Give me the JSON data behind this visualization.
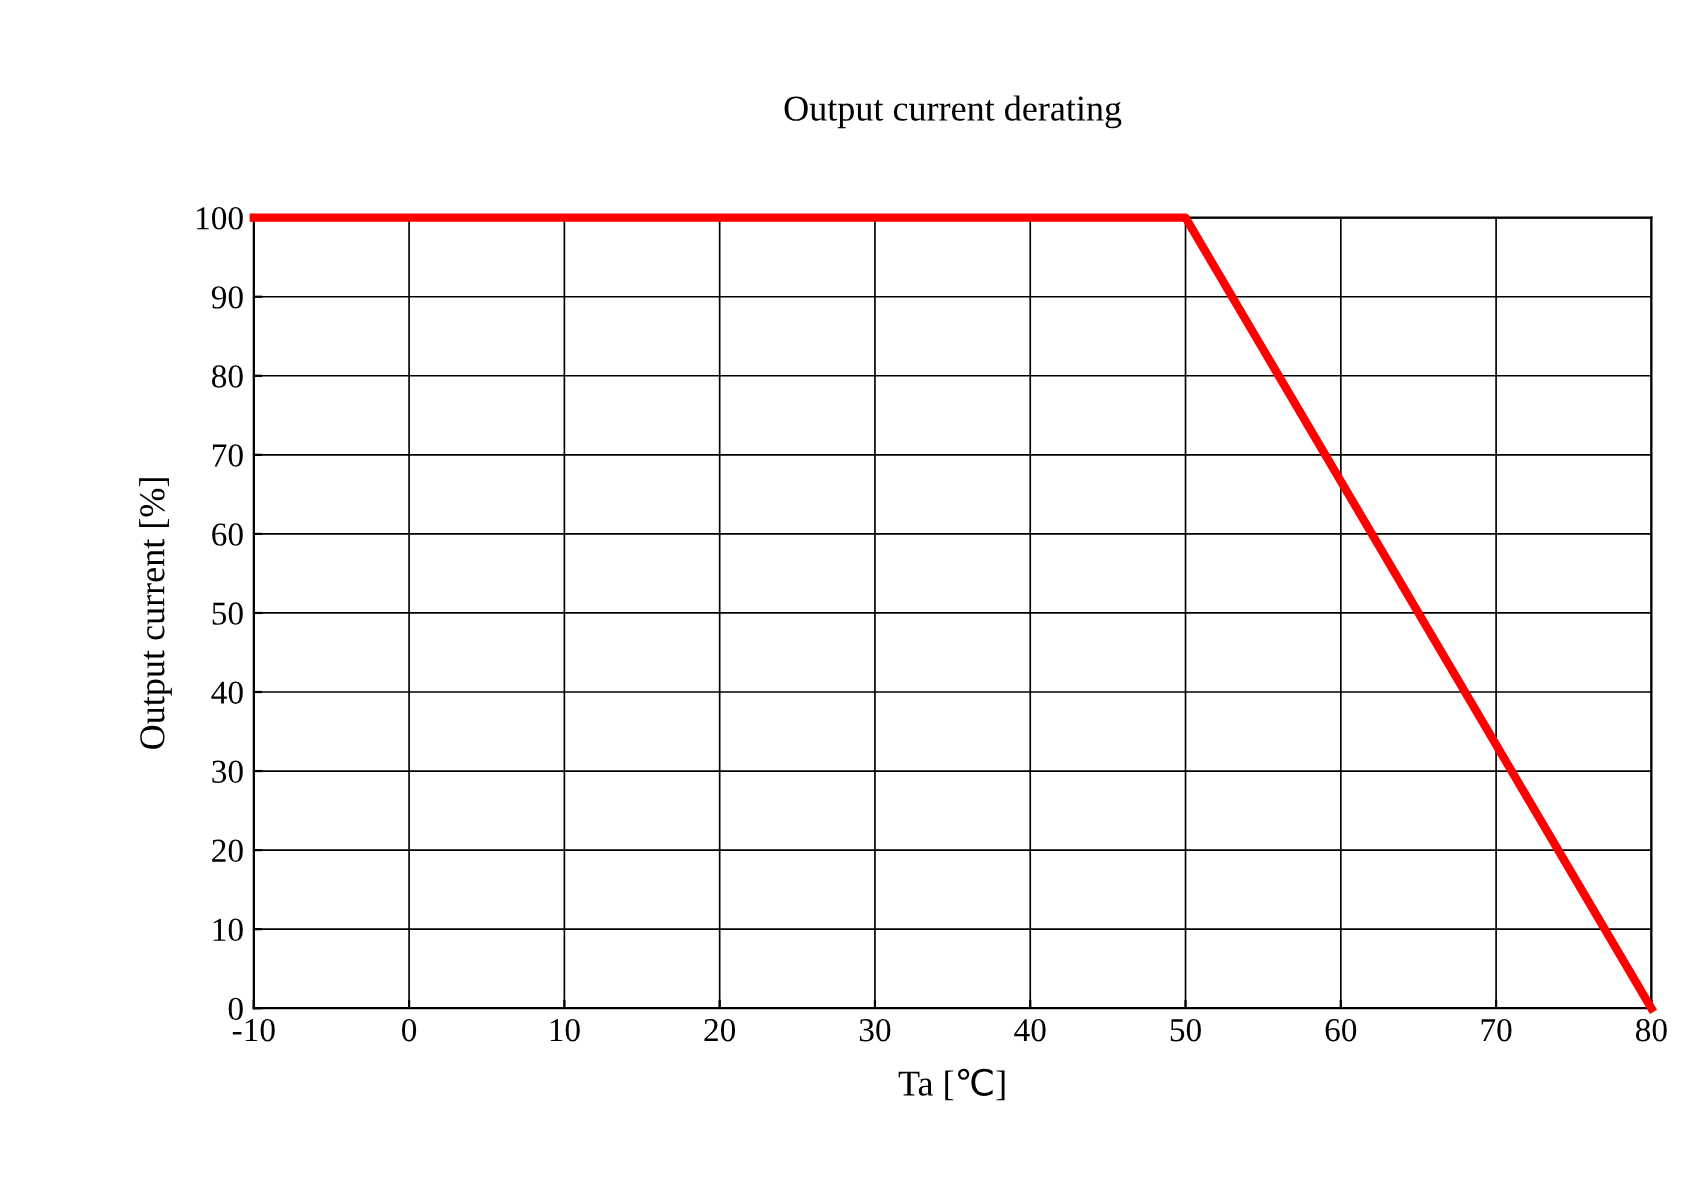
{
  "chart_data": {
    "type": "line",
    "title": "Output current derating",
    "xlabel": "Ta [℃]",
    "ylabel": "Output current [%]",
    "x": [
      -10,
      50,
      80
    ],
    "series": [
      {
        "color": "#ff0000",
        "values": [
          100,
          100,
          0
        ]
      }
    ],
    "xlim": [
      -10,
      80
    ],
    "xticks": [
      -10,
      0,
      10,
      20,
      30,
      40,
      50,
      60,
      70,
      80
    ],
    "ylim": [
      0,
      100
    ],
    "yticks": [
      0,
      10,
      20,
      30,
      40,
      50,
      60,
      70,
      80,
      90,
      100
    ],
    "grid": true,
    "marker": "none",
    "line_style": "solid"
  }
}
